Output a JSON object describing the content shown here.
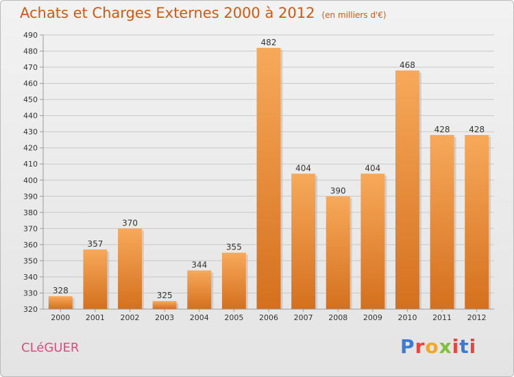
{
  "header": {
    "title": "Achats et Charges Externes 2000 à 2012",
    "unit": "(en milliers d'€)"
  },
  "footer": {
    "commune": "CLéGUER",
    "logo": "Proxiti"
  },
  "chart_data": {
    "type": "bar",
    "categories": [
      "2000",
      "2001",
      "2002",
      "2003",
      "2004",
      "2005",
      "2006",
      "2007",
      "2008",
      "2009",
      "2010",
      "2011",
      "2012"
    ],
    "values": [
      328,
      357,
      370,
      325,
      344,
      355,
      482,
      404,
      390,
      404,
      468,
      428,
      428
    ],
    "ylim": [
      320,
      490
    ],
    "ytick_step": 10,
    "grid": true,
    "bar_color": "#f0913a",
    "bar_color_top": "#f7a95a",
    "bar_color_bottom": "#d4701e"
  }
}
